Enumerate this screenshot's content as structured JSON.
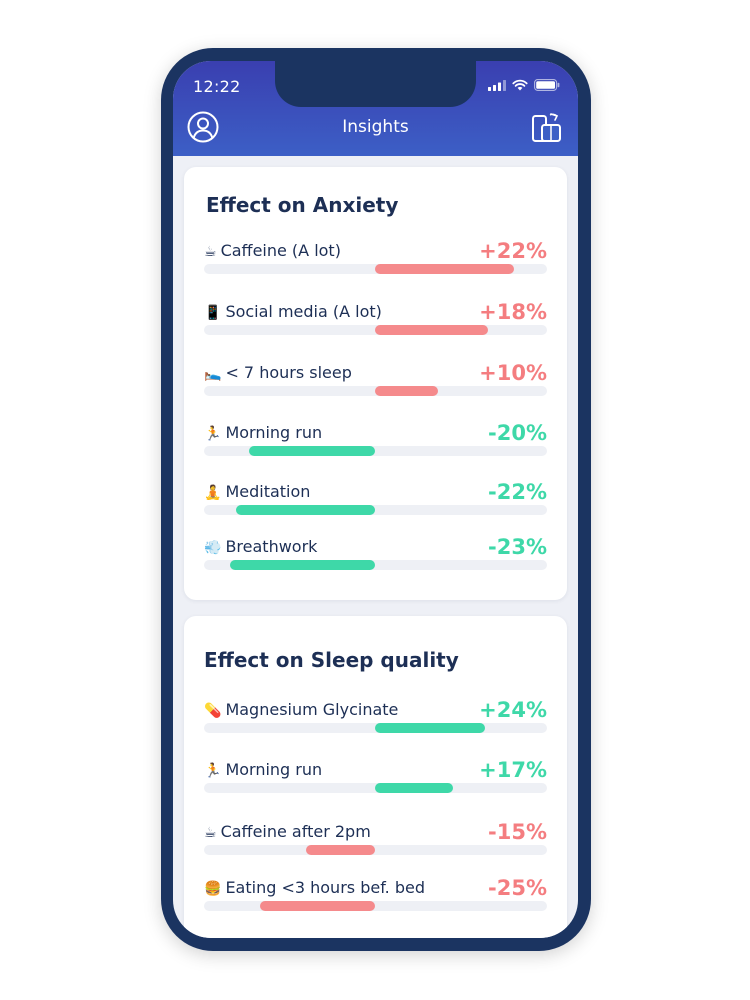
{
  "status_bar": {
    "time": "12:22"
  },
  "header": {
    "title": "Insights",
    "profile_icon": "user-circle-icon",
    "sync_icon": "devices-sync-icon"
  },
  "anxiety": {
    "title": "Effect on Anxiety",
    "items": [
      {
        "emoji": "☕",
        "label": "Caffeine (A lot)",
        "value": "+22%",
        "percent": 22,
        "tone": "red"
      },
      {
        "emoji": "📱",
        "label": "Social media (A lot)",
        "value": "+18%",
        "percent": 18,
        "tone": "red"
      },
      {
        "emoji": "🛌",
        "label": "< 7 hours sleep",
        "value": "+10%",
        "percent": 10,
        "tone": "red"
      },
      {
        "emoji": "🏃",
        "label": "Morning run",
        "value": "-20%",
        "percent": -20,
        "tone": "green"
      },
      {
        "emoji": "🧘",
        "label": "Meditation",
        "value": "-22%",
        "percent": -22,
        "tone": "green"
      },
      {
        "emoji": "💨",
        "label": "Breathwork",
        "value": "-23%",
        "percent": -23,
        "tone": "green"
      }
    ]
  },
  "sleep": {
    "title": "Effect on Sleep quality",
    "items": [
      {
        "emoji": "💊",
        "label": "Magnesium Glycinate",
        "value": "+24%",
        "percent": 24,
        "tone": "green"
      },
      {
        "emoji": "🏃",
        "label": "Morning run",
        "value": "+17%",
        "percent": 17,
        "tone": "green"
      },
      {
        "emoji": "☕",
        "label": "Caffeine after 2pm",
        "value": "-15%",
        "percent": -15,
        "tone": "red"
      },
      {
        "emoji": "🍔",
        "label": "Eating <3 hours bef. bed",
        "value": "-25%",
        "percent": -25,
        "tone": "red"
      }
    ]
  }
}
